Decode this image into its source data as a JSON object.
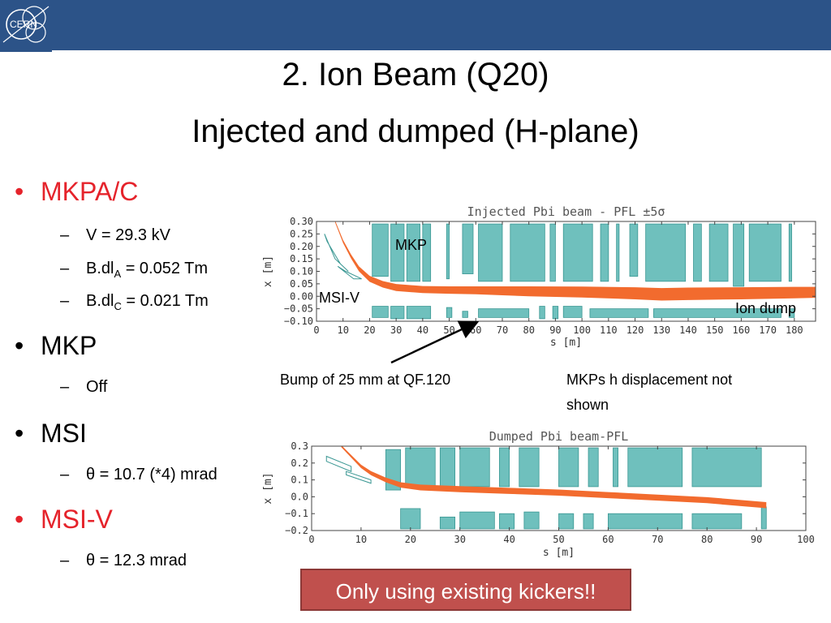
{
  "header": {
    "logo_text": "CERN"
  },
  "title": {
    "line1": "2. Ion Beam (Q20)",
    "line2": "Injected and dumped (H-plane)"
  },
  "bullets": {
    "b1": {
      "label": "MKPA/C",
      "color": "#e5232b"
    },
    "b1_sub1": "V = 29.3 kV",
    "b1_sub2_pre": "B.dl",
    "b1_sub2_sub": "A",
    "b1_sub2_post": " = 0.052 Tm",
    "b1_sub3_pre": "B.dl",
    "b1_sub3_sub": "C",
    "b1_sub3_post": " = 0.021 Tm",
    "b2": {
      "label": "MKP"
    },
    "b2_sub1": "Off",
    "b3": {
      "label": "MSI"
    },
    "b3_sub1": "θ = 10.7 (*4) mrad",
    "b4": {
      "label": "MSI-V",
      "color": "#e5232b"
    },
    "b4_sub1": "θ = 12.3 mrad"
  },
  "annotations": {
    "mkp": "MKP",
    "msiv": "MSI-V",
    "ion_dump": "Ion dump",
    "bump": "Bump of 25 mm at QF.120",
    "mkps_line1": "MKPs h displacement not",
    "mkps_line2": "shown"
  },
  "callout": "Only using existing kickers!!",
  "colors": {
    "beam": "#f26b2e",
    "aperture_fill": "#6fc0bd",
    "aperture_edge": "#3a9793",
    "header_bar": "#2c5388"
  },
  "chart_data": [
    {
      "type": "line",
      "title": "Injected Pbi beam - PFL ±5σ",
      "xlabel": "s [m]",
      "ylabel": "x [m]",
      "xlim": [
        0,
        188
      ],
      "ylim": [
        -0.1,
        0.3
      ],
      "xticks": [
        0,
        10,
        20,
        30,
        40,
        50,
        60,
        70,
        80,
        90,
        100,
        110,
        120,
        130,
        140,
        150,
        160,
        170,
        180
      ],
      "yticks": [
        -0.1,
        -0.05,
        0.0,
        0.05,
        0.1,
        0.15,
        0.2,
        0.25,
        0.3
      ],
      "ytick_labels": [
        "−0.10",
        "−0.05",
        "0.00",
        "0.05",
        "0.10",
        "0.15",
        "0.20",
        "0.25",
        "0.30"
      ],
      "series": [
        {
          "role": "beam",
          "x": [
            7,
            10,
            13,
            16,
            20,
            25,
            30,
            40,
            50,
            60,
            70,
            80,
            100,
            120,
            130,
            140,
            160,
            180,
            188
          ],
          "y": [
            0.3,
            0.22,
            0.16,
            0.11,
            0.07,
            0.048,
            0.035,
            0.027,
            0.025,
            0.024,
            0.022,
            0.02,
            0.017,
            0.012,
            0.008,
            0.01,
            0.012,
            0.015,
            0.016
          ],
          "width": [
            0.004,
            0.006,
            0.008,
            0.01,
            0.012,
            0.013,
            0.014,
            0.014,
            0.015,
            0.016,
            0.018,
            0.02,
            0.022,
            0.024,
            0.025,
            0.025,
            0.024,
            0.023,
            0.022
          ]
        }
      ],
      "apertures_upper": [
        [
          21,
          27,
          0.08,
          0.29
        ],
        [
          28,
          33,
          0.06,
          0.29
        ],
        [
          34,
          39,
          0.06,
          0.29
        ],
        [
          40,
          43,
          0.06,
          0.29
        ],
        [
          49,
          50,
          0.07,
          0.29
        ],
        [
          55,
          59,
          0.09,
          0.29
        ],
        [
          61,
          70,
          0.06,
          0.29
        ],
        [
          73,
          86,
          0.06,
          0.29
        ],
        [
          88,
          90,
          0.06,
          0.29
        ],
        [
          93,
          104,
          0.06,
          0.29
        ],
        [
          107,
          110,
          0.06,
          0.29
        ],
        [
          113,
          114,
          0.06,
          0.29
        ],
        [
          118,
          121,
          0.08,
          0.29
        ],
        [
          124,
          139,
          0.06,
          0.29
        ],
        [
          142,
          145,
          0.06,
          0.29
        ],
        [
          148,
          155,
          0.06,
          0.29
        ],
        [
          157,
          161,
          0.04,
          0.29
        ],
        [
          163,
          175,
          0.06,
          0.29
        ],
        [
          178,
          179,
          0.06,
          0.29
        ]
      ],
      "apertures_lower": [
        [
          21,
          27,
          -0.085,
          -0.04
        ],
        [
          28,
          33,
          -0.09,
          -0.04
        ],
        [
          34,
          43,
          -0.09,
          -0.04
        ],
        [
          49,
          51,
          -0.085,
          -0.045
        ],
        [
          55,
          57,
          -0.085,
          -0.06
        ],
        [
          61,
          80,
          -0.085,
          -0.05
        ],
        [
          84,
          86,
          -0.09,
          -0.04
        ],
        [
          89,
          91,
          -0.09,
          -0.04
        ],
        [
          93,
          100,
          -0.085,
          -0.04
        ],
        [
          103,
          125,
          -0.085,
          -0.05
        ],
        [
          127,
          175,
          -0.085,
          -0.05
        ],
        [
          178,
          180,
          -0.085,
          -0.05
        ]
      ]
    },
    {
      "type": "line",
      "title": "Dumped Pbi beam-PFL",
      "xlabel": "s [m]",
      "ylabel": "x [m]",
      "xlim": [
        0,
        100
      ],
      "ylim": [
        -0.2,
        0.3
      ],
      "xticks": [
        0,
        10,
        20,
        30,
        40,
        50,
        60,
        70,
        80,
        90,
        100
      ],
      "yticks": [
        -0.2,
        -0.1,
        0.0,
        0.1,
        0.2,
        0.3
      ],
      "ytick_labels": [
        "−0.2",
        "−0.1",
        "0.0",
        "0.1",
        "0.2",
        "0.3"
      ],
      "series": [
        {
          "role": "beam",
          "x": [
            6,
            8,
            10,
            12,
            15,
            18,
            22,
            30,
            40,
            50,
            60,
            70,
            80,
            92
          ],
          "y": [
            0.3,
            0.24,
            0.18,
            0.14,
            0.1,
            0.07,
            0.055,
            0.045,
            0.035,
            0.025,
            0.01,
            -0.005,
            -0.02,
            -0.05
          ],
          "width": [
            0.006,
            0.008,
            0.01,
            0.012,
            0.014,
            0.016,
            0.017,
            0.018,
            0.018,
            0.018,
            0.018,
            0.018,
            0.018,
            0.018
          ]
        }
      ],
      "apertures_upper": [
        [
          15,
          18,
          0.04,
          0.28
        ],
        [
          19,
          25,
          0.06,
          0.29
        ],
        [
          26,
          29,
          0.06,
          0.29
        ],
        [
          30,
          36,
          0.06,
          0.29
        ],
        [
          38,
          40,
          0.06,
          0.29
        ],
        [
          42,
          46,
          0.06,
          0.29
        ],
        [
          50,
          54,
          0.06,
          0.29
        ],
        [
          56,
          58,
          0.06,
          0.29
        ],
        [
          61,
          62,
          0.06,
          0.29
        ],
        [
          64,
          75,
          0.06,
          0.29
        ],
        [
          77,
          91,
          0.06,
          0.29
        ]
      ],
      "apertures_lower": [
        [
          18,
          22,
          -0.19,
          -0.07
        ],
        [
          26,
          29,
          -0.19,
          -0.12
        ],
        [
          30,
          37,
          -0.19,
          -0.09
        ],
        [
          38,
          41,
          -0.19,
          -0.1
        ],
        [
          43,
          46,
          -0.19,
          -0.09
        ],
        [
          50,
          53,
          -0.19,
          -0.1
        ],
        [
          55,
          57,
          -0.19,
          -0.1
        ],
        [
          60,
          75,
          -0.19,
          -0.1
        ],
        [
          77,
          87,
          -0.19,
          -0.1
        ],
        [
          91,
          92,
          -0.19,
          -0.06
        ]
      ]
    }
  ]
}
